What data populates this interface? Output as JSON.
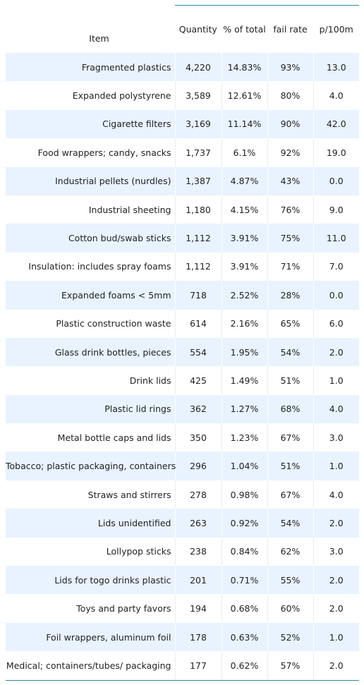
{
  "chart_data": {
    "type": "table",
    "columns": [
      "Item",
      "Quantity",
      "% of total",
      "fail rate",
      "p/100m"
    ],
    "rows": [
      [
        "Fragmented plastics",
        "4,220",
        "14.83%",
        "93%",
        "13.0"
      ],
      [
        "Expanded polystyrene",
        "3,589",
        "12.61%",
        "80%",
        "4.0"
      ],
      [
        "Cigarette filters",
        "3,169",
        "11.14%",
        "90%",
        "42.0"
      ],
      [
        "Food wrappers; candy, snacks",
        "1,737",
        "6.1%",
        "92%",
        "19.0"
      ],
      [
        "Industrial pellets (nurdles)",
        "1,387",
        "4.87%",
        "43%",
        "0.0"
      ],
      [
        "Industrial sheeting",
        "1,180",
        "4.15%",
        "76%",
        "9.0"
      ],
      [
        "Cotton bud/swab sticks",
        "1,112",
        "3.91%",
        "75%",
        "11.0"
      ],
      [
        "Insulation: includes spray foams",
        "1,112",
        "3.91%",
        "71%",
        "7.0"
      ],
      [
        "Expanded foams < 5mm",
        "718",
        "2.52%",
        "28%",
        "0.0"
      ],
      [
        "Plastic construction waste",
        "614",
        "2.16%",
        "65%",
        "6.0"
      ],
      [
        "Glass drink bottles, pieces",
        "554",
        "1.95%",
        "54%",
        "2.0"
      ],
      [
        "Drink lids",
        "425",
        "1.49%",
        "51%",
        "1.0"
      ],
      [
        "Plastic lid rings",
        "362",
        "1.27%",
        "68%",
        "4.0"
      ],
      [
        "Metal bottle caps and lids",
        "350",
        "1.23%",
        "67%",
        "3.0"
      ],
      [
        "Tobacco; plastic packaging, containers",
        "296",
        "1.04%",
        "51%",
        "1.0"
      ],
      [
        "Straws and stirrers",
        "278",
        "0.98%",
        "67%",
        "4.0"
      ],
      [
        "Lids unidentified",
        "263",
        "0.92%",
        "54%",
        "2.0"
      ],
      [
        "Lollypop sticks",
        "238",
        "0.84%",
        "62%",
        "3.0"
      ],
      [
        "Lids for togo drinks plastic",
        "201",
        "0.71%",
        "55%",
        "2.0"
      ],
      [
        "Toys and party favors",
        "194",
        "0.68%",
        "60%",
        "2.0"
      ],
      [
        "Foil wrappers, aluminum foil",
        "178",
        "0.63%",
        "52%",
        "1.0"
      ],
      [
        "Medical; containers/tubes/ packaging",
        "177",
        "0.62%",
        "57%",
        "2.0"
      ]
    ]
  },
  "colors": {
    "stripe": "#e8f3ff",
    "rule": "#2e8bad"
  }
}
